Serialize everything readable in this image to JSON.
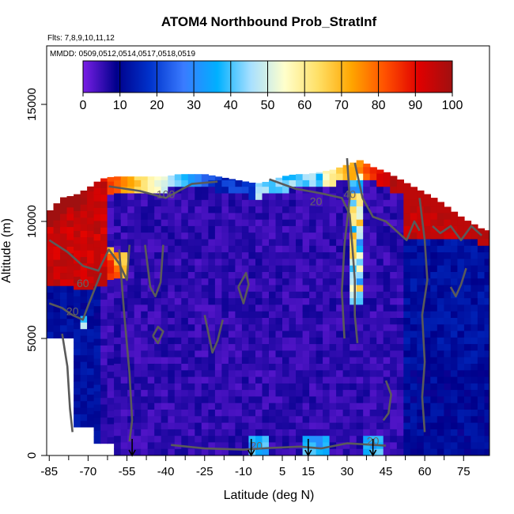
{
  "chart_data": {
    "type": "heatmap",
    "title": "ATOM4 Northbound Prob_StratInf",
    "notes": [
      "Flts: 7,8,9,10,11,12",
      "MMDD: 0509,0512,0514,0517,0518,0519"
    ],
    "xlabel": "Latitude (deg N)",
    "ylabel": "Altitude (m)",
    "xlim": [
      -86,
      85
    ],
    "ylim": [
      0,
      17500
    ],
    "x_ticks": [
      -85,
      -70,
      -55,
      -40,
      -25,
      -10,
      5,
      15,
      30,
      45,
      60,
      75
    ],
    "y_ticks": [
      0,
      5000,
      10000,
      15000
    ],
    "colorbar": {
      "range": [
        0,
        100
      ],
      "ticks": [
        0,
        10,
        20,
        30,
        40,
        50,
        60,
        70,
        80,
        90,
        100
      ],
      "colors": [
        "#7a1fe6",
        "#00008b",
        "#0033cc",
        "#3a7bff",
        "#00b0ff",
        "#a8e0ff",
        "#ffffcc",
        "#ffe066",
        "#ffa500",
        "#ff5000",
        "#e00000",
        "#a01010"
      ]
    },
    "contour_labels": [
      {
        "text": "100",
        "lat": -40,
        "alt": 11000
      },
      {
        "text": "60",
        "lat": -72,
        "alt": 7200
      },
      {
        "text": "20",
        "lat": -76,
        "alt": 6000
      },
      {
        "text": "20",
        "lat": 18,
        "alt": 10700
      },
      {
        "text": "40",
        "lat": 31,
        "alt": 11000
      },
      {
        "text": "20",
        "lat": -5,
        "alt": 250
      },
      {
        "text": "20",
        "lat": 40,
        "alt": 450
      }
    ],
    "flight_markers_lat": [
      -53,
      -7,
      15,
      40
    ],
    "coverage": {
      "lat": [
        -86,
        -80,
        -75,
        -70,
        -65,
        -60,
        -55,
        -50,
        -45,
        -40,
        -35,
        -30,
        -25,
        -20,
        -15,
        -10,
        -5,
        0,
        5,
        10,
        15,
        20,
        25,
        30,
        35,
        40,
        45,
        50,
        55,
        60,
        65,
        70,
        75,
        80,
        83
      ],
      "top_alt": [
        10300,
        11000,
        11100,
        11400,
        11800,
        11900,
        11900,
        11900,
        11900,
        11900,
        12000,
        12000,
        12000,
        11900,
        11800,
        11700,
        11600,
        11700,
        11900,
        12000,
        12000,
        12100,
        12200,
        12400,
        12600,
        12300,
        12100,
        11800,
        11500,
        11200,
        10900,
        10500,
        10100,
        9800,
        9600
      ]
    }
  }
}
